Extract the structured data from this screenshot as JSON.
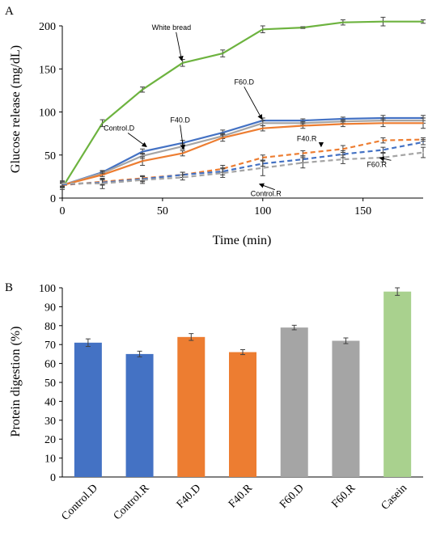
{
  "chart_data": [
    {
      "panel_label": "A",
      "type": "line",
      "xlabel": "Time (min)",
      "ylabel": "Glucose release (mg/dL)",
      "xlim": [
        0,
        180
      ],
      "ylim": [
        0,
        200
      ],
      "xticks": [
        0,
        50,
        100,
        150
      ],
      "yticks": [
        0,
        50,
        100,
        150,
        200
      ],
      "grid": false,
      "legend": "none",
      "series": [
        {
          "name": "White bread",
          "color": "#6db33f",
          "style": "solid",
          "x": [
            0,
            20,
            40,
            60,
            80,
            100,
            120,
            140,
            160,
            180
          ],
          "y": [
            12,
            87,
            126,
            157,
            168,
            196,
            198,
            204,
            205,
            205
          ],
          "err": [
            2,
            4,
            3,
            4,
            4,
            4,
            1,
            3,
            5,
            2
          ]
        },
        {
          "name": "Control.D",
          "color": "#4472c4",
          "style": "solid",
          "x": [
            0,
            20,
            40,
            60,
            80,
            100,
            120,
            140,
            160,
            180
          ],
          "y": [
            15,
            30,
            54,
            64,
            76,
            90,
            90,
            92,
            93,
            93
          ],
          "err": [
            2,
            2,
            3,
            3,
            3,
            3,
            2,
            2,
            3,
            3
          ]
        },
        {
          "name": "F60.D",
          "color": "#a5a5a5",
          "style": "solid",
          "x": [
            0,
            20,
            40,
            60,
            80,
            100,
            120,
            140,
            160,
            180
          ],
          "y": [
            15,
            29,
            49,
            60,
            72,
            87,
            87,
            89,
            90,
            90
          ],
          "err": [
            2,
            2,
            3,
            3,
            3,
            3,
            2,
            2,
            3,
            3
          ]
        },
        {
          "name": "F40.D",
          "color": "#ed7d31",
          "style": "solid",
          "x": [
            0,
            20,
            40,
            60,
            80,
            100,
            120,
            140,
            160,
            180
          ],
          "y": [
            15,
            27,
            43,
            52,
            70,
            81,
            84,
            86,
            87,
            87
          ],
          "err": [
            2,
            2,
            5,
            3,
            4,
            3,
            3,
            3,
            4,
            6
          ]
        },
        {
          "name": "F40.R",
          "color": "#ed7d31",
          "style": "dashed",
          "x": [
            0,
            20,
            40,
            60,
            80,
            100,
            120,
            140,
            160,
            180
          ],
          "y": [
            15,
            19,
            23,
            27,
            34,
            47,
            52,
            57,
            67,
            68
          ],
          "err": [
            3,
            3,
            3,
            3,
            4,
            3,
            3,
            4,
            3,
            2
          ]
        },
        {
          "name": "F60.R",
          "color": "#4472c4",
          "style": "dashed",
          "x": [
            0,
            20,
            40,
            60,
            80,
            100,
            120,
            140,
            160,
            180
          ],
          "y": [
            16,
            18,
            22,
            27,
            31,
            40,
            45,
            51,
            56,
            65
          ],
          "err": [
            3,
            3,
            3,
            3,
            4,
            3,
            4,
            4,
            3,
            3
          ]
        },
        {
          "name": "Control.R",
          "color": "#a5a5a5",
          "style": "dashed",
          "x": [
            0,
            20,
            40,
            60,
            80,
            100,
            120,
            140,
            160,
            180
          ],
          "y": [
            17,
            17,
            21,
            24,
            29,
            35,
            41,
            45,
            47,
            53
          ],
          "err": [
            3,
            6,
            4,
            3,
            5,
            9,
            6,
            5,
            5,
            6
          ]
        }
      ],
      "annotations": [
        {
          "text": "White bread",
          "series": "White bread",
          "target_x": 60
        },
        {
          "text": "Control.D",
          "series": "Control.D",
          "target_x": 40
        },
        {
          "text": "F40.D",
          "series": "F40.D",
          "target_x": 60
        },
        {
          "text": "F60.D",
          "series": "F60.D",
          "target_x": 100
        },
        {
          "text": "F40.R",
          "series": "F40.R",
          "target_x": 140
        },
        {
          "text": "F60.R",
          "series": "F60.R",
          "target_x": 160
        },
        {
          "text": "Control.R",
          "series": "Control.R",
          "target_x": 100
        }
      ]
    },
    {
      "panel_label": "B",
      "type": "bar",
      "ylabel": "Protein digestion (%)",
      "ylim": [
        0,
        100
      ],
      "yticks": [
        0,
        10,
        20,
        30,
        40,
        50,
        60,
        70,
        80,
        90,
        100
      ],
      "grid": false,
      "legend": "none",
      "categories": [
        "Control.D",
        "Control.R",
        "F40.D",
        "F40.R",
        "F60.D",
        "F60.R",
        "Casein"
      ],
      "values": [
        71,
        65,
        74,
        66,
        79,
        72,
        98
      ],
      "err": [
        2,
        1.5,
        1.8,
        1.3,
        1.2,
        1.5,
        2
      ],
      "colors": [
        "#4472c4",
        "#4472c4",
        "#ed7d31",
        "#ed7d31",
        "#a5a5a5",
        "#a5a5a5",
        "#a9d18e"
      ]
    }
  ]
}
